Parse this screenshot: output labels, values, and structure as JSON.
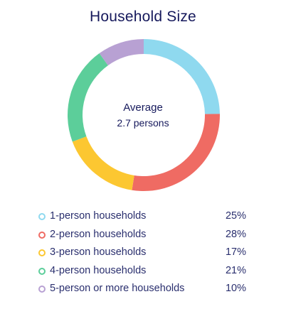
{
  "chart_data": {
    "type": "pie",
    "title": "Household Size",
    "center_label": "Average",
    "center_value": "2.7 persons",
    "slices": [
      {
        "label": "1-person households",
        "value": 25,
        "display": "25%",
        "color": "#8fd9ef"
      },
      {
        "label": "2-person households",
        "value": 28,
        "display": "28%",
        "color": "#ef6b63"
      },
      {
        "label": "3-person households",
        "value": 17,
        "display": "17%",
        "color": "#fcc731"
      },
      {
        "label": "4-person households",
        "value": 21,
        "display": "21%",
        "color": "#5cce9a"
      },
      {
        "label": "5-person or more households",
        "value": 10,
        "display": "10%",
        "color": "#b8a1d3"
      }
    ],
    "legend_position": "bottom"
  }
}
